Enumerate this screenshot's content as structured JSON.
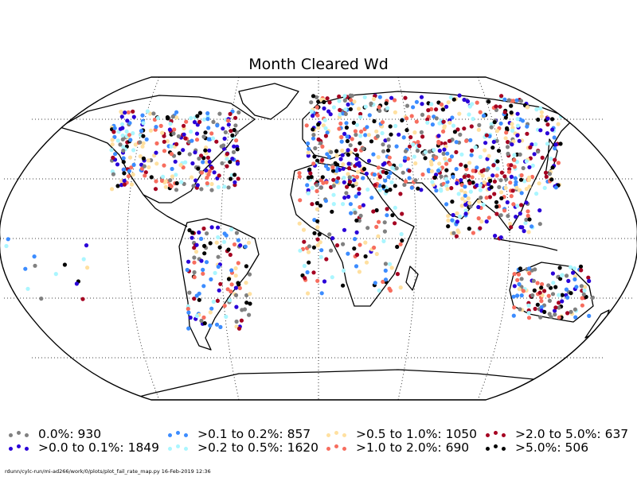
{
  "title": "Month Cleared Wd",
  "footer": "rdunn/cylc-run/mi-ad266/work/0/plots/plot_fail_rate_map.py   16-Feb-2019 12:36",
  "legend": [
    {
      "label": "0.0%: 930",
      "color": "#808080"
    },
    {
      "label": ">0.0 to 0.1%: 1849",
      "color": "#2a00d8"
    },
    {
      "label": ">0.1 to 0.2%: 857",
      "color": "#3c8cff"
    },
    {
      "label": ">0.2 to 0.5%: 1620",
      "color": "#aaf6ff"
    },
    {
      "label": ">0.5 to 1.0%: 1050",
      "color": "#ffe0a0"
    },
    {
      "label": ">1.0 to 2.0%: 690",
      "color": "#f76d5e"
    },
    {
      "label": ">2.0 to 5.0%: 637",
      "color": "#a50021"
    },
    {
      "label": ">5.0%: 506",
      "color": "#000000"
    }
  ]
}
